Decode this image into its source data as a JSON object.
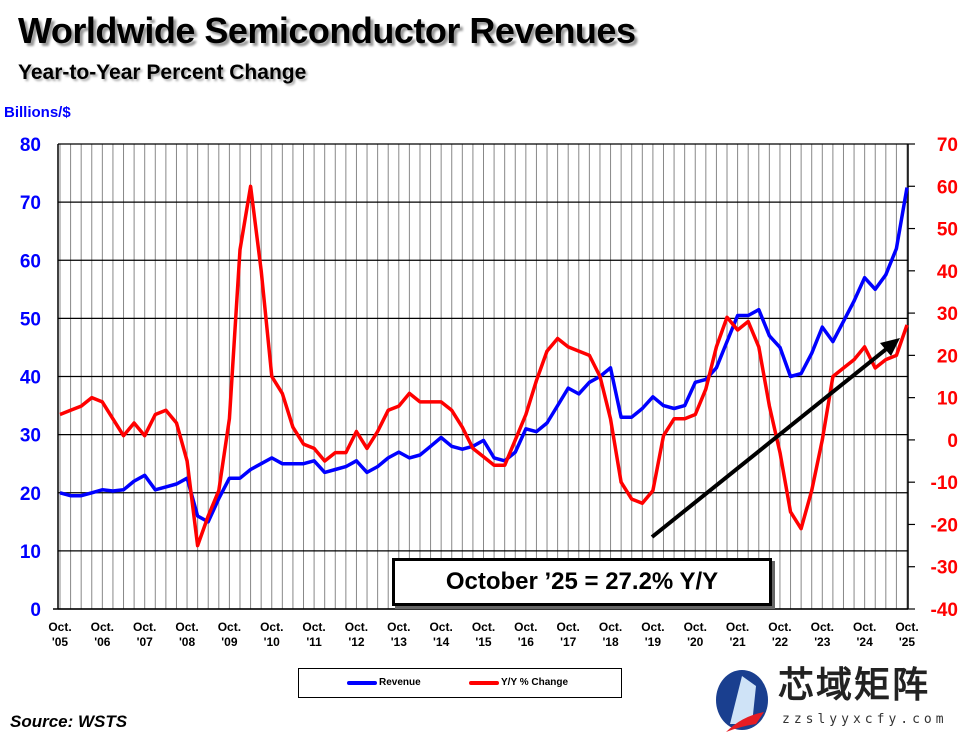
{
  "title": "Worldwide Semiconductor Revenues",
  "subtitle": "Year-to-Year Percent Change",
  "source": "Source: WSTS",
  "annotation": "October ’25 = 27.2% Y/Y",
  "watermark": {
    "text": "芯域矩阵",
    "url": "zzslyyxcfy.com"
  },
  "chart_data": {
    "type": "line",
    "ylabel_left": "Billions/$",
    "ylim_left": [
      0,
      80
    ],
    "yticks_left": [
      0,
      10,
      20,
      30,
      40,
      50,
      60,
      70,
      80
    ],
    "ylim_right": [
      -40,
      70
    ],
    "yticks_right": [
      -40,
      -30,
      -20,
      -10,
      0,
      10,
      20,
      30,
      40,
      50,
      60,
      70
    ],
    "x_tick_labels": [
      [
        "Oct.",
        "'05"
      ],
      [
        "Oct.",
        "'06"
      ],
      [
        "Oct.",
        "'07"
      ],
      [
        "Oct.",
        "'08"
      ],
      [
        "Oct.",
        "'09"
      ],
      [
        "Oct.",
        "'10"
      ],
      [
        "Oct.",
        "'11"
      ],
      [
        "Oct.",
        "'12"
      ],
      [
        "Oct.",
        "'13"
      ],
      [
        "Oct.",
        "'14"
      ],
      [
        "Oct.",
        "'15"
      ],
      [
        "Oct.",
        "'16"
      ],
      [
        "Oct.",
        "'17"
      ],
      [
        "Oct.",
        "'18"
      ],
      [
        "Oct.",
        "'19"
      ],
      [
        "Oct.",
        "'20"
      ],
      [
        "Oct.",
        "'21"
      ],
      [
        "Oct.",
        "'22"
      ],
      [
        "Oct.",
        "'23"
      ],
      [
        "Oct.",
        "'24"
      ],
      [
        "Oct.",
        "'25"
      ]
    ],
    "x_period": "quarterly, Oct 2005 to Oct 2025",
    "grid": true,
    "legend_position": "bottom",
    "series": [
      {
        "name": "Revenue",
        "axis": "left",
        "color": "#0000ff",
        "values": [
          20,
          19.5,
          19.5,
          20,
          20.5,
          20.3,
          20.5,
          22,
          23,
          20.5,
          21,
          21.5,
          22.5,
          16,
          15,
          19,
          22.5,
          22.5,
          24,
          25,
          26,
          25,
          25,
          25,
          25.5,
          23.5,
          24,
          24.5,
          25.5,
          23.5,
          24.5,
          26,
          27,
          26,
          26.5,
          28,
          29.5,
          28,
          27.5,
          28,
          29,
          26,
          25.5,
          27,
          31,
          30.5,
          32,
          35,
          38,
          37,
          39,
          40,
          41.5,
          33,
          33,
          34.5,
          36.5,
          35,
          34.5,
          35,
          39,
          39.5,
          41.5,
          46,
          50.5,
          50.5,
          51.5,
          47,
          45,
          40,
          40.5,
          44,
          48.5,
          46,
          49.5,
          53,
          57,
          55,
          57.5,
          62,
          72.5
        ]
      },
      {
        "name": "Y/Y % Change",
        "axis": "right",
        "color": "#ff0000",
        "values": [
          6,
          7,
          8,
          10,
          9,
          5,
          1,
          4,
          1,
          6,
          7,
          4,
          -5,
          -25,
          -18,
          -12,
          5,
          45,
          60,
          40,
          15,
          11,
          3,
          -1,
          -2,
          -5,
          -3,
          -3,
          2,
          -2,
          2,
          7,
          8,
          11,
          9,
          9,
          9,
          7,
          3,
          -2,
          -4,
          -6,
          -6,
          0,
          6,
          14,
          21,
          24,
          22,
          21,
          20,
          15,
          5,
          -10,
          -14,
          -15,
          -12,
          1,
          5,
          5,
          6,
          12,
          22,
          29,
          26,
          28,
          22,
          8,
          -3,
          -17,
          -21,
          -12,
          0,
          15,
          17,
          19,
          22,
          17,
          19,
          20,
          27.2
        ]
      }
    ]
  }
}
